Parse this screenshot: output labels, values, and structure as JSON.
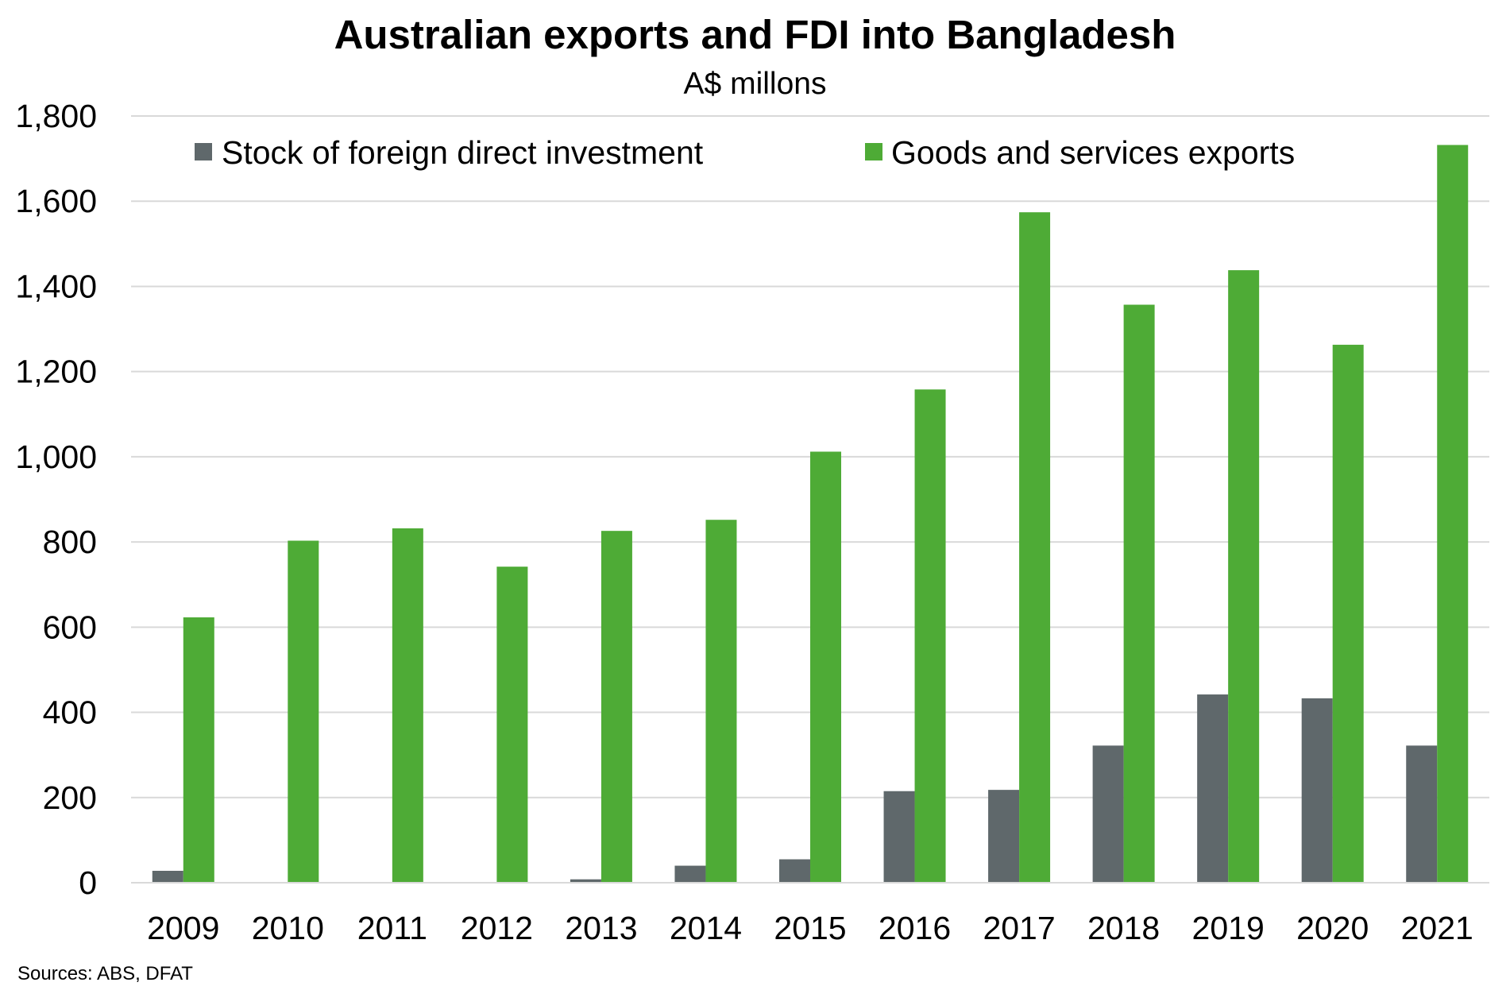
{
  "chart_data": {
    "type": "bar",
    "title": "Australian exports and FDI into Bangladesh",
    "subtitle": "A$ millons",
    "source": "Sources: ABS, DFAT",
    "categories": [
      "2009",
      "2010",
      "2011",
      "2012",
      "2013",
      "2014",
      "2015",
      "2016",
      "2017",
      "2018",
      "2019",
      "2020",
      "2021"
    ],
    "series": [
      {
        "name": "Stock of foreign direct investment",
        "color": "#5f686b",
        "values": [
          28,
          0,
          0,
          0,
          8,
          40,
          55,
          215,
          218,
          322,
          442,
          433,
          322
        ]
      },
      {
        "name": "Goods and services exports",
        "color": "#4eab36",
        "values": [
          623,
          803,
          832,
          742,
          826,
          852,
          1012,
          1158,
          1574,
          1357,
          1438,
          1263,
          1732
        ]
      }
    ],
    "yticks": [
      "0",
      "200",
      "400",
      "600",
      "800",
      "1,000",
      "1,200",
      "1,400",
      "1,600",
      "1,800"
    ],
    "ylim": [
      0,
      1800
    ],
    "grid": true,
    "gridline_color": "#d9d9d9",
    "legend_position": "top"
  }
}
